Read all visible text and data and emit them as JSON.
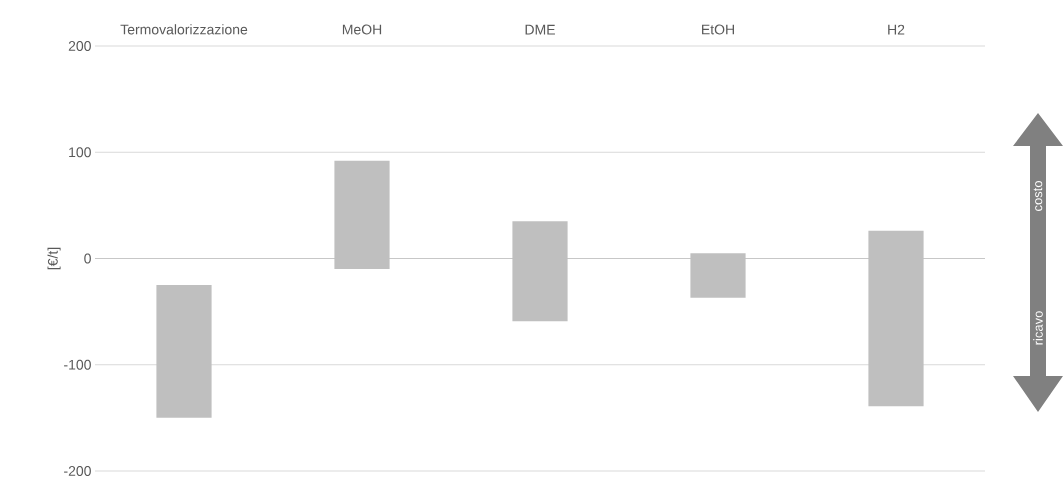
{
  "chart_data": {
    "type": "bar",
    "ylabel": "[€/t]",
    "categories": [
      "Termovalorizzazione",
      "MeOH",
      "DME",
      "EtOH",
      "H2"
    ],
    "base": [
      -150,
      -10,
      -59,
      -37,
      -139
    ],
    "values": [
      125,
      102,
      94,
      42,
      165
    ],
    "color": "#bfbfbf",
    "ylim": [
      -200,
      200
    ],
    "yticks": [
      -200,
      -100,
      0,
      100,
      200
    ],
    "grid": "y",
    "annotations": [
      "costo",
      "ricavo"
    ]
  }
}
